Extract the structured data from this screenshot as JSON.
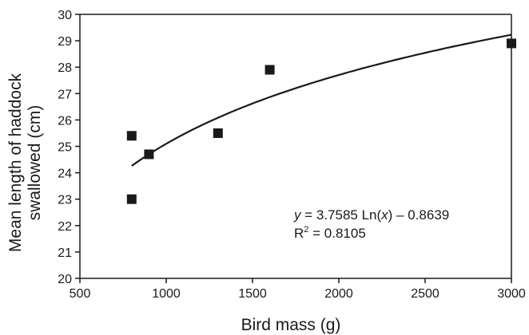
{
  "chart_data": {
    "type": "scatter",
    "title": "",
    "xlabel": "Bird mass (g)",
    "ylabel_lines": [
      "Mean length of haddock",
      "swallowed (cm)"
    ],
    "xlim": [
      500,
      3000
    ],
    "ylim": [
      20,
      30
    ],
    "xticks": [
      500,
      1000,
      1500,
      2000,
      2500,
      3000
    ],
    "yticks": [
      20,
      21,
      22,
      23,
      24,
      25,
      26,
      27,
      28,
      29,
      30
    ],
    "grid": false,
    "legend": "none",
    "marker": "square",
    "marker_color": "#1a1a1a",
    "line_color": "#1a1a1a",
    "points": [
      {
        "x": 800,
        "y": 25.4
      },
      {
        "x": 800,
        "y": 23.0
      },
      {
        "x": 900,
        "y": 24.7
      },
      {
        "x": 1300,
        "y": 25.5
      },
      {
        "x": 1600,
        "y": 27.9
      },
      {
        "x": 3000,
        "y": 28.9
      }
    ],
    "trendline": {
      "type": "logarithmic",
      "a": 3.7585,
      "b": -0.8639,
      "x_range": [
        800,
        3000
      ]
    },
    "annotation": {
      "equation": {
        "y_var": "y",
        "eq_mid": " = 3.7585 Ln(",
        "x_var": "x",
        "eq_end": ") – 0.8639"
      },
      "r2": {
        "r_letter": "R",
        "sup": "2",
        "value_text": " = 0.8105"
      }
    }
  }
}
